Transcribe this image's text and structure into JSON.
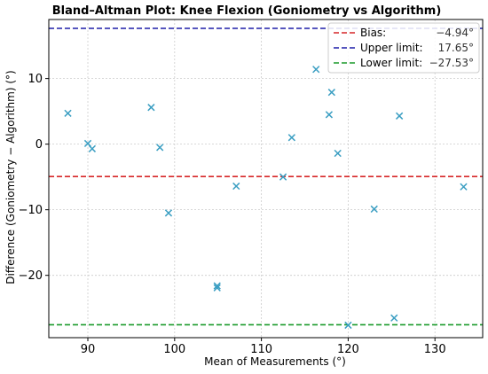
{
  "chart_data": {
    "type": "scatter",
    "title": "Bland–Altman Plot: Knee Flexion (Goniometry vs Algorithm)",
    "xlabel": "Mean of Measurements (°)",
    "ylabel": "Difference (Goniometry − Algorithm) (°)",
    "xlim": [
      85.5,
      135.5
    ],
    "ylim": [
      -29.5,
      19.0
    ],
    "x_ticks": [
      90,
      100,
      110,
      120,
      130
    ],
    "y_ticks": [
      -20,
      -10,
      0,
      10
    ],
    "grid": true,
    "marker": "x",
    "marker_color": "#3a9ec2",
    "points": [
      {
        "x": 87.7,
        "y": 4.7
      },
      {
        "x": 90.0,
        "y": 0.1
      },
      {
        "x": 90.5,
        "y": -0.7
      },
      {
        "x": 97.3,
        "y": 5.6
      },
      {
        "x": 98.3,
        "y": -0.5
      },
      {
        "x": 99.3,
        "y": -10.5
      },
      {
        "x": 104.9,
        "y": -21.6
      },
      {
        "x": 104.9,
        "y": -21.9
      },
      {
        "x": 107.1,
        "y": -6.4
      },
      {
        "x": 112.5,
        "y": -5.0
      },
      {
        "x": 113.5,
        "y": 1.0
      },
      {
        "x": 116.3,
        "y": 11.4
      },
      {
        "x": 117.8,
        "y": 4.5
      },
      {
        "x": 118.1,
        "y": 7.9
      },
      {
        "x": 118.8,
        "y": -1.4
      },
      {
        "x": 120.0,
        "y": -27.6
      },
      {
        "x": 123.0,
        "y": -9.9
      },
      {
        "x": 125.3,
        "y": -26.5
      },
      {
        "x": 125.9,
        "y": 4.3
      },
      {
        "x": 133.3,
        "y": -6.5
      }
    ],
    "reference_lines": [
      {
        "name": "Bias:",
        "value": -4.94,
        "label": "−4.94°",
        "color": "#d62728"
      },
      {
        "name": "Upper limit:",
        "value": 17.65,
        "label": "17.65°",
        "color": "#1f1fa8"
      },
      {
        "name": "Lower limit:",
        "value": -27.53,
        "label": "−27.53°",
        "color": "#1a9a2a"
      }
    ],
    "legend_position": "top-right"
  }
}
